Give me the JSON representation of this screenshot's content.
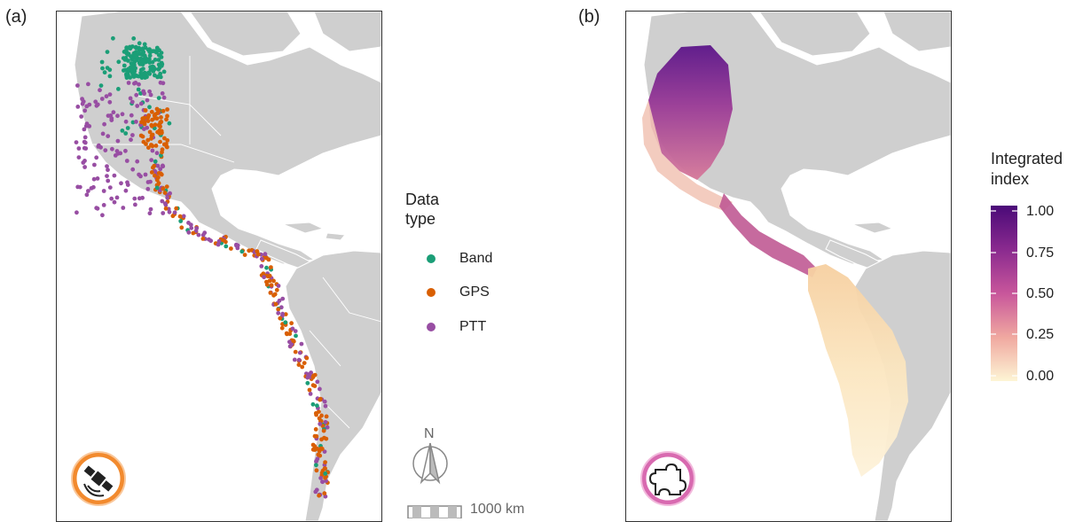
{
  "panels": {
    "a_label": "(a)",
    "b_label": "(b)"
  },
  "legend_a": {
    "title_line1": "Data",
    "title_line2": "type",
    "items": [
      {
        "label": "Band",
        "color": "#1b9e77"
      },
      {
        "label": "GPS",
        "color": "#d95f02"
      },
      {
        "label": "PTT",
        "color": "#984ea3"
      }
    ]
  },
  "compass": {
    "north": "N"
  },
  "scale_bar": {
    "label": "1000 km"
  },
  "legend_b": {
    "title_line1": "Integrated",
    "title_line2": "index",
    "ticks": [
      "1.00",
      "0.75",
      "0.50",
      "0.25",
      "0.00"
    ],
    "color_high": "#4a0a78",
    "color_low": "#fdf5d5"
  },
  "icons": {
    "panel_a": "satellite-icon",
    "panel_b": "puzzle-icon",
    "panel_a_ring": "#f28a2e",
    "panel_b_ring": "#d86ab0"
  },
  "colors": {
    "land": "#cfcfcf",
    "land_border": "#ffffff"
  }
}
